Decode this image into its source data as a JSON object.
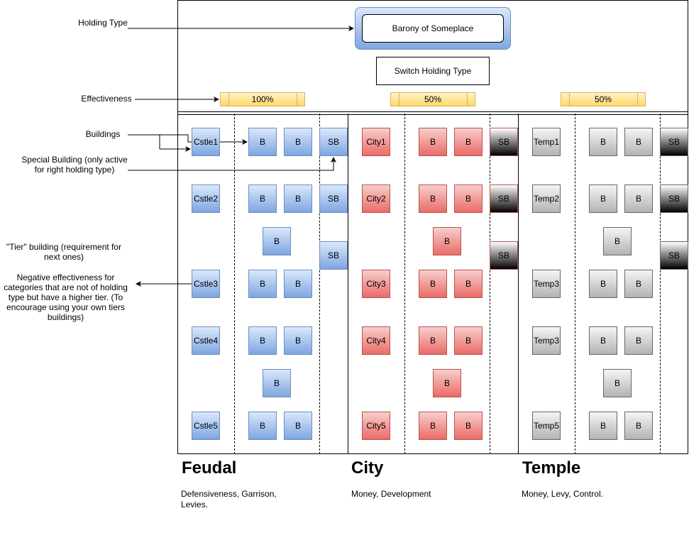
{
  "annotations": {
    "holding_type": "Holding Type",
    "effectiveness": "Effectiveness",
    "buildings": "Buildings",
    "special_building": "Special Building (only active for right holding type)",
    "tier_building": "\"Tier\" building (requirement for next ones)",
    "negative_effectiveness": "Negative effectiveness for categories that are not of holding type but have a higher tier. (To encourage using your own tiers buildings)"
  },
  "header": {
    "holding_name": "Barony of Someplace",
    "switch_button": "Switch Holding Type"
  },
  "effectiveness_bars": [
    "100%",
    "50%",
    "50%"
  ],
  "feudal": {
    "title": "Feudal",
    "description": "Defensiveness, Garrison, Levies.",
    "tiers": [
      "Cstle1",
      "Cstle2",
      "Cstle3",
      "Cstle4",
      "Cstle5"
    ]
  },
  "city": {
    "title": "City",
    "description": "Money, Development",
    "tiers": [
      "City1",
      "City2",
      "City3",
      "City4",
      "City5"
    ]
  },
  "temple": {
    "title": "Temple",
    "description": "Money, Levy, Control.",
    "tiers": [
      "Temp1",
      "Temp2",
      "Temp3",
      "Temp3",
      "Temp5"
    ]
  },
  "labels": {
    "building": "B",
    "special": "SB"
  },
  "colors": {
    "feudal": "#7ea6e0",
    "city": "#ea6b66",
    "temple": "#b3b3b3",
    "bar": "#ffd966",
    "header_box": "#7ea6e0"
  }
}
